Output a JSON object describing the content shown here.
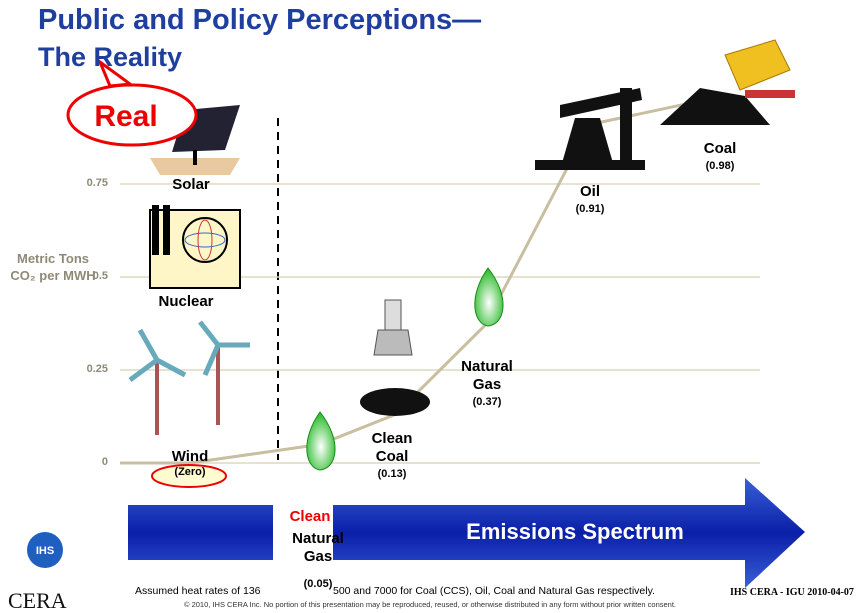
{
  "header": {
    "title_line1": "Public and Policy Perceptions—",
    "title_line2": "The Reality",
    "callout": "Real"
  },
  "chart_data": {
    "type": "line",
    "y_label": "Metric Tons CO₂ per MWH",
    "categories": [
      "Wind",
      "Natural Gas",
      "Clean Coal",
      "Natural Gas",
      "Oil",
      "Coal"
    ],
    "highlighted_prefix": "Clean",
    "other_zero_sources": [
      "Solar",
      "Nuclear"
    ],
    "values": [
      0,
      0.05,
      0.13,
      0.37,
      0.91,
      0.98
    ],
    "value_labels": [
      "(Zero)",
      "(0.05)",
      "(0.13)",
      "(0.37)",
      "(0.91)",
      "(0.98)"
    ],
    "color": "#c8bfa0",
    "ylim": [
      0,
      1
    ],
    "yticks": [
      0,
      0.25,
      0.5,
      0.75
    ],
    "grid": true,
    "arrow_text": "Emissions Spectrum"
  },
  "footer": {
    "note_part1": "Assumed heat rates of 136",
    "note_part2": "500 and 7000 for Coal (CCS), Oil, Coal and Natural Gas respectively.",
    "source": "IHS CERA - IGU 2010-04-07",
    "copyright": "© 2010, IHS CERA Inc. No portion of this presentation may be reproduced, reused, or otherwise distributed in any form without prior written consent.",
    "logo_top": "IHS",
    "logo_bottom": "CERA"
  }
}
